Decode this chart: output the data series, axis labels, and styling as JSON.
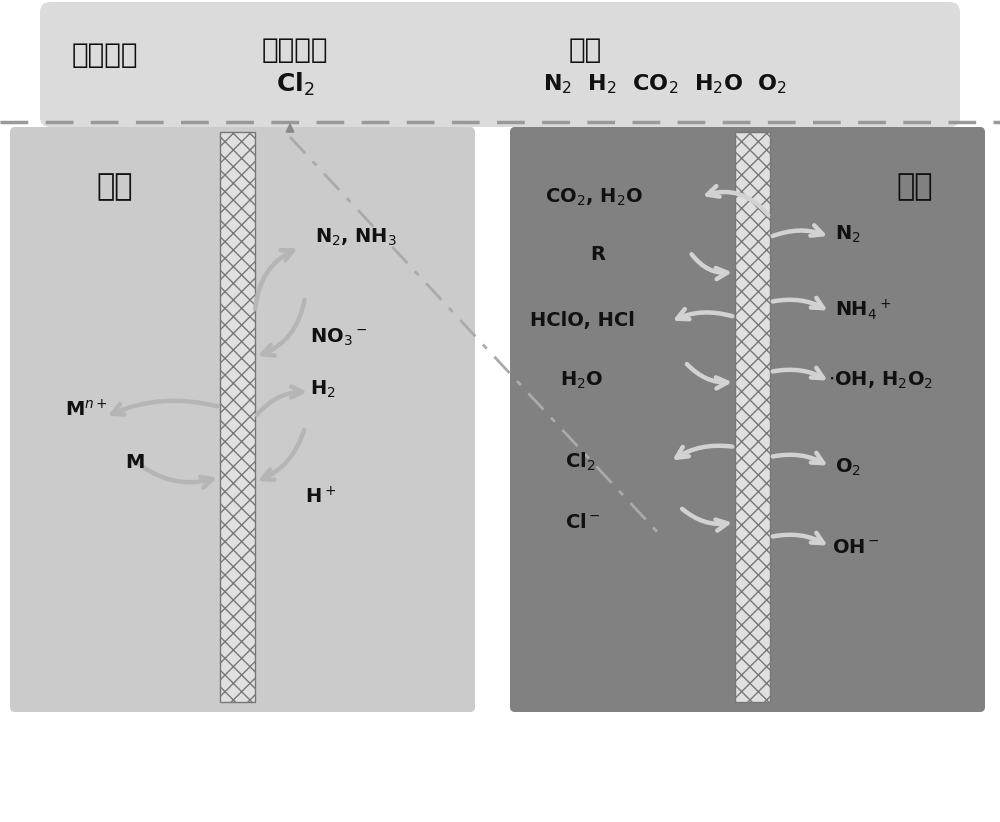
{
  "bg_color": "#ffffff",
  "top_bg": "#d5d5d5",
  "left_panel_bg": "#c0c0c0",
  "right_panel_bg": "#828282",
  "electrode_bg": "#e5e5e5",
  "arrow_color_left": "#b8b8b8",
  "arrow_color_right": "#d0d0d0",
  "text_color": "#111111",
  "dashed_color": "#aaaaaa",
  "dashdot_color": "#aaaaaa",
  "top_tail": "尾气处理",
  "top_recover": "回收产酸",
  "top_cl2": "Cl$_2$",
  "top_exhaust": "排空",
  "top_gases": "N$_2$  H$_2$  CO$_2$  H$_2$O  O$_2$",
  "left_title": "阴极",
  "right_title": "阳极",
  "figsize": [
    10.0,
    8.22
  ],
  "dpi": 100
}
